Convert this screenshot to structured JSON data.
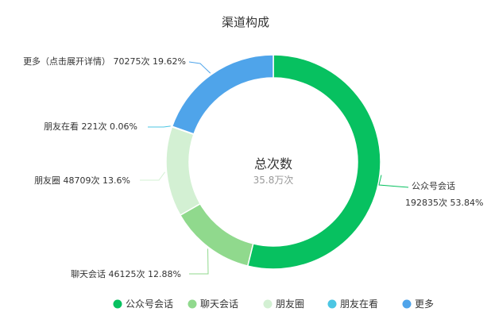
{
  "chart_data": {
    "type": "pie",
    "title": "渠道构成",
    "center_title": "总次数",
    "center_value": "35.8万次",
    "legend_position": "bottom",
    "slices": [
      {
        "name": "公众号会话",
        "count": 192835,
        "percent": 53.84,
        "color": "#07c160",
        "label_line1": "公众号会话",
        "label_line2": "192835次 53.84%"
      },
      {
        "name": "聊天会话",
        "count": 46125,
        "percent": 12.88,
        "color": "#90d98d",
        "label_line1": "聊天会话 46125次 12.88%",
        "label_line2": ""
      },
      {
        "name": "朋友圈",
        "count": 48709,
        "percent": 13.6,
        "color": "#d3f0d3",
        "label_line1": "朋友圈 48709次 13.6%",
        "label_line2": ""
      },
      {
        "name": "朋友在看",
        "count": 221,
        "percent": 0.06,
        "color": "#4cc6e3",
        "label_line1": "朋友在看 221次 0.06%",
        "label_line2": ""
      },
      {
        "name": "更多",
        "count": 70275,
        "percent": 19.62,
        "color": "#4fa4ea",
        "label_line1": "更多（点击展开详情） 70275次 19.62%",
        "label_line2": ""
      }
    ]
  }
}
